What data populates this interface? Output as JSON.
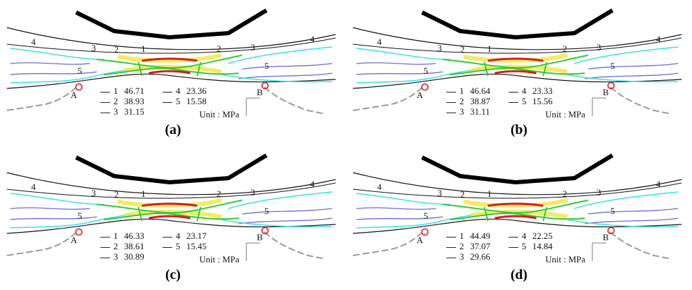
{
  "panels": [
    {
      "caption": "(a)",
      "legend": [
        {
          "level": "1",
          "value": "46.71"
        },
        {
          "level": "2",
          "value": "38.93"
        },
        {
          "level": "3",
          "value": "31.15"
        },
        {
          "level": "4",
          "value": "23.36"
        },
        {
          "level": "5",
          "value": "15.58"
        }
      ],
      "unit": "Unit : MPa",
      "point_a": "A",
      "point_b": "B"
    },
    {
      "caption": "(b)",
      "legend": [
        {
          "level": "1",
          "value": "46.64"
        },
        {
          "level": "2",
          "value": "38.87"
        },
        {
          "level": "3",
          "value": "31.11"
        },
        {
          "level": "4",
          "value": "23.33"
        },
        {
          "level": "5",
          "value": "15.56"
        }
      ],
      "unit": "Unit : MPa",
      "point_a": "A",
      "point_b": "B"
    },
    {
      "caption": "(c)",
      "legend": [
        {
          "level": "1",
          "value": "46.33"
        },
        {
          "level": "2",
          "value": "38.61"
        },
        {
          "level": "3",
          "value": "30.89"
        },
        {
          "level": "4",
          "value": "23.17"
        },
        {
          "level": "5",
          "value": "15.45"
        }
      ],
      "unit": "Unit : MPa",
      "point_a": "A",
      "point_b": "B"
    },
    {
      "caption": "(d)",
      "legend": [
        {
          "level": "1",
          "value": "44.49"
        },
        {
          "level": "2",
          "value": "37.07"
        },
        {
          "level": "3",
          "value": "29.66"
        },
        {
          "level": "4",
          "value": "22.25"
        },
        {
          "level": "5",
          "value": "14.84"
        }
      ],
      "unit": "Unit : MPa",
      "point_a": "A",
      "point_b": "B"
    }
  ],
  "contour_labels": {
    "l1": "1",
    "l2": "2",
    "l3": "3",
    "l4": "4",
    "l5": "5"
  },
  "colors": {
    "level1": "#d81b1b",
    "level2": "#2ecc2e",
    "level3": "#f2e84a",
    "level4": "#35e0e6",
    "level5": "#6a6ad8",
    "marker": "#d81b1b",
    "outline": "#111111",
    "mesh": "#9a9a9a"
  }
}
